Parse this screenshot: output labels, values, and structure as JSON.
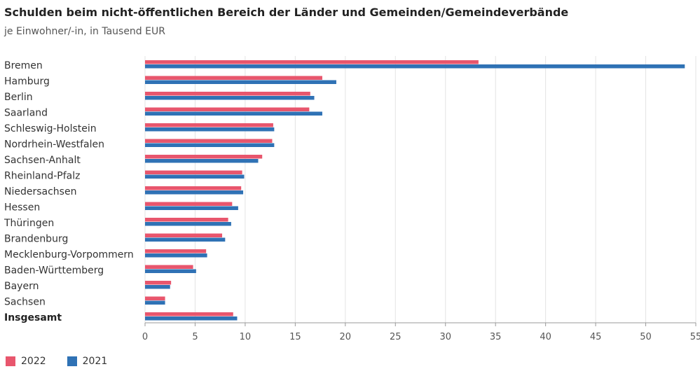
{
  "title": "Schulden beim nicht-öffentlichen Bereich der Länder und Gemeinden/Gemeindeverbände",
  "subtitle": "je Einwohner/-in, in Tausend EUR",
  "colors": {
    "s2022": "#e8566d",
    "s2021": "#2f72b5",
    "grid": "#e3e3e3"
  },
  "legend": [
    {
      "label": "2022",
      "color": "#e8566d"
    },
    {
      "label": "2021",
      "color": "#2f72b5"
    }
  ],
  "chart_data": {
    "type": "bar",
    "orientation": "horizontal",
    "title": "Schulden beim nicht-öffentlichen Bereich der Länder und Gemeinden/Gemeindeverbände",
    "subtitle": "je Einwohner/-in, in Tausend EUR",
    "categories": [
      "Bremen",
      "Hamburg",
      "Berlin",
      "Saarland",
      "Schleswig-Holstein",
      "Nordrhein-Westfalen",
      "Sachsen-Anhalt",
      "Rheinland-Pfalz",
      "Niedersachsen",
      "Hessen",
      "Thüringen",
      "Brandenburg",
      "Mecklenburg-Vorpommern",
      "Baden-Württemberg",
      "Bayern",
      "Sachsen",
      "Insgesamt"
    ],
    "bold_categories": [
      "Insgesamt"
    ],
    "series": [
      {
        "name": "2022",
        "color": "#e8566d",
        "values": [
          33.3,
          17.7,
          16.5,
          16.4,
          12.8,
          12.7,
          11.7,
          9.7,
          9.6,
          8.7,
          8.3,
          7.7,
          6.1,
          4.8,
          2.6,
          2.0,
          8.8
        ]
      },
      {
        "name": "2021",
        "color": "#2f72b5",
        "values": [
          53.9,
          19.1,
          16.9,
          17.7,
          12.9,
          12.9,
          11.3,
          9.9,
          9.8,
          9.3,
          8.6,
          8.0,
          6.2,
          5.1,
          2.5,
          2.0,
          9.2
        ]
      }
    ],
    "xlim": [
      0,
      55
    ],
    "xticks": [
      "0",
      "5",
      "10",
      "15",
      "20",
      "25",
      "30",
      "35",
      "40",
      "45",
      "50",
      "55"
    ],
    "grid": true,
    "legend_position": "bottom-left"
  }
}
